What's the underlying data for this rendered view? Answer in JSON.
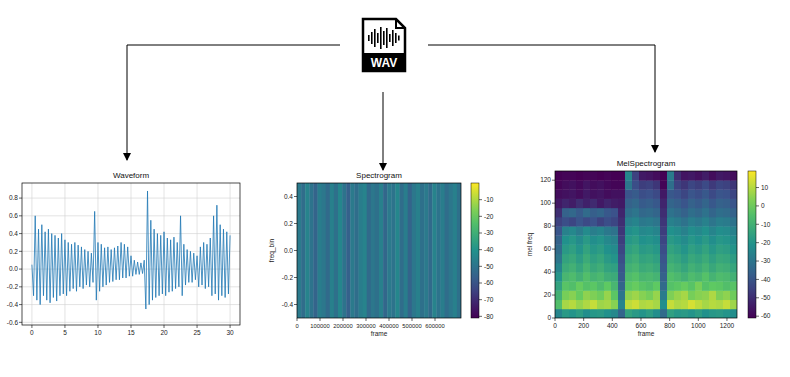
{
  "icon": {
    "label": "WAV"
  },
  "chart_data": [
    {
      "type": "line",
      "title": "Waveform",
      "color": "#1f77b4",
      "grid": true,
      "xlim": [
        -1.5,
        31.5
      ],
      "ylim": [
        -0.63,
        0.97
      ],
      "xticks": [
        0,
        5,
        10,
        15,
        20,
        25,
        30
      ],
      "yticks": [
        -0.6,
        -0.4,
        -0.2,
        {
          "value": 0,
          "label": "0.0"
        },
        0.2,
        0.4,
        0.6,
        0.8
      ],
      "x": [
        0,
        0.25,
        0.5,
        0.75,
        1,
        1.25,
        1.5,
        1.75,
        2,
        2.25,
        2.5,
        2.75,
        3,
        3.25,
        3.5,
        3.75,
        4,
        4.25,
        4.5,
        4.75,
        5,
        5.25,
        5.5,
        5.75,
        6,
        6.25,
        6.5,
        6.75,
        7,
        7.25,
        7.5,
        7.75,
        8,
        8.25,
        8.5,
        8.75,
        9,
        9.25,
        9.5,
        9.75,
        10,
        10.25,
        10.5,
        10.75,
        11,
        11.25,
        11.5,
        11.75,
        12,
        12.25,
        12.5,
        12.75,
        13,
        13.25,
        13.5,
        13.75,
        14,
        14.25,
        14.5,
        14.75,
        15,
        15.25,
        15.5,
        15.75,
        16,
        16.25,
        16.5,
        16.75,
        17,
        17.25,
        17.5,
        17.75,
        18,
        18.25,
        18.5,
        18.75,
        19,
        19.25,
        19.5,
        19.75,
        20,
        20.25,
        20.5,
        20.75,
        21,
        21.25,
        21.5,
        21.75,
        22,
        22.25,
        22.5,
        22.75,
        23,
        23.25,
        23.5,
        23.75,
        24,
        24.25,
        24.5,
        24.75,
        25,
        25.25,
        25.5,
        25.75,
        26,
        26.25,
        26.5,
        26.75,
        27,
        27.25,
        27.5,
        27.75,
        28,
        28.25,
        28.5,
        28.75,
        29,
        29.25,
        29.5,
        29.75,
        30
      ],
      "values": [
        0.05,
        -0.3,
        0.6,
        -0.35,
        0.45,
        -0.4,
        0.5,
        -0.3,
        0.42,
        -0.35,
        0.45,
        -0.38,
        0.4,
        -0.32,
        0.38,
        -0.36,
        0.35,
        -0.3,
        0.4,
        -0.28,
        0.33,
        -0.3,
        0.3,
        -0.25,
        0.28,
        -0.22,
        0.3,
        -0.25,
        0.27,
        -0.2,
        0.25,
        -0.22,
        0.22,
        -0.18,
        0.2,
        -0.2,
        0.18,
        -0.15,
        0.65,
        -0.35,
        0.3,
        -0.25,
        0.28,
        -0.2,
        0.24,
        -0.18,
        0.25,
        -0.15,
        0.22,
        -0.14,
        0.24,
        -0.12,
        0.26,
        -0.12,
        0.3,
        -0.1,
        0.28,
        -0.1,
        0.25,
        -0.08,
        0.15,
        -0.08,
        0.1,
        -0.06,
        0.08,
        -0.06,
        0.07,
        -0.05,
        0.1,
        -0.45,
        0.88,
        -0.4,
        0.55,
        -0.35,
        0.45,
        -0.32,
        0.4,
        -0.3,
        0.38,
        -0.28,
        0.42,
        -0.3,
        0.35,
        -0.26,
        0.33,
        -0.25,
        0.36,
        -0.22,
        0.3,
        -0.2,
        0.6,
        -0.3,
        0.28,
        -0.18,
        0.22,
        -0.15,
        0.2,
        -0.15,
        0.18,
        -0.12,
        0.15,
        -0.2,
        0.25,
        -0.18,
        0.3,
        -0.22,
        0.28,
        -0.2,
        0.35,
        -0.3,
        0.6,
        -0.28,
        0.72,
        -0.35,
        0.5,
        -0.3,
        0.45,
        -0.32,
        0.42,
        -0.28,
        0.38
      ]
    },
    {
      "type": "heatmap",
      "title": "Spectrogram",
      "x_label": "frame",
      "y_label": "freq_bin",
      "xlim": [
        0,
        713000
      ],
      "ylim": [
        -0.5,
        0.5
      ],
      "xticks": [
        0,
        100000,
        200000,
        300000,
        400000,
        500000,
        600000
      ],
      "yticks": [
        -0.4,
        -0.2,
        {
          "value": 0,
          "label": "0.0"
        },
        0.2,
        0.4
      ],
      "cells": [
        [
          -48,
          -52,
          -45,
          -50,
          -55,
          -47,
          -49,
          -53,
          -46,
          -51,
          -44,
          -50,
          -56,
          -48,
          -52,
          -47,
          -45,
          -53,
          -49,
          -51,
          -46,
          -54,
          -48,
          -50,
          -44,
          -52,
          -47,
          -55,
          -49,
          -46,
          -51,
          -48,
          -53,
          -45,
          -50,
          -47,
          -52,
          -49,
          -46,
          -51
        ]
      ],
      "colorbar_range": [
        -81,
        0
      ],
      "colorbar_ticks": [
        -10,
        -20,
        -30,
        -40,
        -50,
        -60,
        -70,
        -80
      ]
    },
    {
      "type": "heatmap",
      "title": "MelSpectrogram",
      "x_label": "frame",
      "y_label": "mel freq",
      "xlim": [
        0,
        1270
      ],
      "ylim": [
        0,
        128
      ],
      "xticks": [
        0,
        200,
        400,
        600,
        800,
        1000,
        1200
      ],
      "yticks": [
        0,
        20,
        40,
        60,
        80,
        100,
        120
      ],
      "cells": [
        [
          -25,
          -18,
          -20,
          -17,
          -22,
          -19,
          -18,
          -21,
          -24,
          -35,
          -15,
          -18,
          -20,
          -17,
          -22,
          -33,
          -16,
          -19,
          -18,
          -20,
          -17,
          -21,
          -19,
          -18,
          -20,
          -22
        ],
        [
          -5,
          8,
          10,
          6,
          9,
          12,
          7,
          8,
          4,
          -25,
          11,
          13,
          9,
          10,
          8,
          -22,
          12,
          9,
          10,
          14,
          11,
          8,
          10,
          9,
          12,
          7
        ],
        [
          -10,
          2,
          4,
          0,
          5,
          3,
          1,
          6,
          -2,
          -30,
          5,
          7,
          4,
          2,
          6,
          -28,
          3,
          6,
          8,
          2,
          4,
          5,
          9,
          3,
          5,
          1
        ],
        [
          -15,
          -3,
          -5,
          0,
          -4,
          -2,
          -6,
          -1,
          -8,
          -35,
          -2,
          0,
          -3,
          -5,
          -1,
          -33,
          -4,
          -2,
          0,
          -3,
          2,
          -4,
          -1,
          -2,
          -5,
          -3
        ],
        [
          -20,
          -8,
          -6,
          -10,
          -5,
          -9,
          -7,
          -11,
          -12,
          -38,
          -6,
          -4,
          -8,
          -7,
          -9,
          -36,
          -5,
          -7,
          -10,
          -6,
          -8,
          -4,
          -9,
          -6,
          -7,
          -10
        ],
        [
          -25,
          -12,
          -10,
          -14,
          -9,
          -13,
          -11,
          -15,
          -16,
          -40,
          -10,
          -8,
          -12,
          -11,
          -13,
          -38,
          -9,
          -11,
          -14,
          -10,
          -12,
          -9,
          -13,
          -10,
          -11,
          -14
        ],
        [
          -30,
          -15,
          -13,
          -17,
          -12,
          -16,
          -14,
          -18,
          -20,
          -42,
          -13,
          -11,
          -15,
          -14,
          -16,
          -40,
          -12,
          -14,
          -17,
          -13,
          -15,
          -12,
          -16,
          -13,
          -14,
          -17
        ],
        [
          -33,
          -18,
          -16,
          -20,
          -15,
          -19,
          -17,
          -21,
          -23,
          -44,
          -16,
          -14,
          -18,
          -17,
          -19,
          -42,
          -15,
          -17,
          -20,
          -16,
          -18,
          -15,
          -19,
          -16,
          -17,
          -20
        ],
        [
          -36,
          -21,
          -19,
          -23,
          -18,
          -22,
          -20,
          -24,
          -26,
          -46,
          -19,
          -17,
          -21,
          -20,
          -22,
          -44,
          -18,
          -20,
          -23,
          -19,
          -21,
          -18,
          -22,
          -19,
          -20,
          -23
        ],
        [
          -40,
          -26,
          -24,
          -28,
          -23,
          -27,
          -25,
          -29,
          -31,
          -48,
          -22,
          -20,
          -24,
          -23,
          -25,
          -46,
          -21,
          -23,
          -26,
          -22,
          -24,
          -21,
          -25,
          -22,
          -23,
          -26
        ],
        [
          -45,
          -42,
          -44,
          -40,
          -43,
          -41,
          -45,
          -42,
          -44,
          -50,
          -27,
          -25,
          -29,
          -28,
          -30,
          -48,
          -26,
          -28,
          -31,
          -27,
          -29,
          -26,
          -30,
          -27,
          -28,
          -31
        ],
        [
          -50,
          -36,
          -34,
          -38,
          -33,
          -37,
          -35,
          -39,
          -41,
          -52,
          -32,
          -30,
          -34,
          -33,
          -35,
          -50,
          -31,
          -33,
          -36,
          -32,
          -34,
          -31,
          -35,
          -32,
          -33,
          -36
        ],
        [
          -55,
          -52,
          -54,
          -50,
          -53,
          -51,
          -55,
          -52,
          -54,
          -55,
          -36,
          -34,
          -38,
          -37,
          -39,
          -52,
          -35,
          -37,
          -40,
          -36,
          -38,
          -35,
          -39,
          -36,
          -37,
          -40
        ],
        [
          -58,
          -57,
          -56,
          -58,
          -55,
          -57,
          -56,
          -58,
          -57,
          -57,
          -40,
          -38,
          -42,
          -41,
          -43,
          -55,
          -39,
          -41,
          -44,
          -40,
          -42,
          -39,
          -43,
          -40,
          -41,
          -44
        ],
        [
          -60,
          -58,
          -57,
          -59,
          -56,
          -58,
          -57,
          -59,
          -60,
          -60,
          -30,
          -42,
          -46,
          -45,
          -48,
          -60,
          -32,
          -45,
          -48,
          -44,
          -46,
          -43,
          -47,
          -44,
          -45,
          -48
        ],
        [
          -62,
          -60,
          -60,
          -61,
          -60,
          -60,
          -61,
          -60,
          -62,
          -62,
          -25,
          -45,
          -55,
          -56,
          -58,
          -62,
          -28,
          -50,
          -56,
          -55,
          -57,
          -54,
          -58,
          -55,
          -56,
          -58
        ]
      ],
      "colorbar_range": [
        -61,
        19
      ],
      "colorbar_ticks": [
        10,
        0,
        -10,
        -20,
        -30,
        -40,
        -50,
        -60
      ]
    }
  ]
}
